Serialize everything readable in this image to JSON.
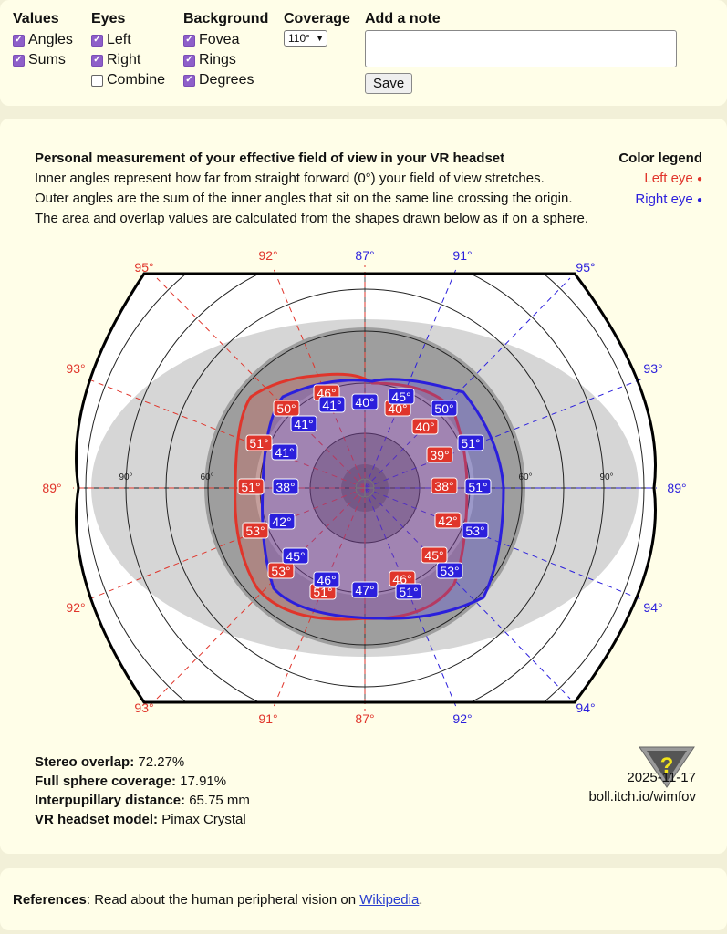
{
  "controls": {
    "values": {
      "title": "Values",
      "options": [
        {
          "label": "Angles",
          "checked": true
        },
        {
          "label": "Sums",
          "checked": true
        }
      ]
    },
    "eyes": {
      "title": "Eyes",
      "options": [
        {
          "label": "Left",
          "checked": true
        },
        {
          "label": "Right",
          "checked": true
        },
        {
          "label": "Combine",
          "checked": false
        }
      ]
    },
    "background": {
      "title": "Background",
      "options": [
        {
          "label": "Fovea",
          "checked": true
        },
        {
          "label": "Rings",
          "checked": true
        },
        {
          "label": "Degrees",
          "checked": true
        }
      ]
    },
    "coverage": {
      "title": "Coverage",
      "selected": "110°"
    },
    "note": {
      "title": "Add a note",
      "value": "",
      "save_label": "Save"
    }
  },
  "header": {
    "title": "Personal measurement of your effective field of view in your VR headset",
    "line1": "Inner angles represent how far from straight forward (0°) your field of view stretches.",
    "line2": "Outer angles are the sum of the inner angles that sit on the same line crossing the origin.",
    "line3": "The area and overlap values are calculated from the shapes drawn below as if on a sphere.",
    "legend_title": "Color legend",
    "legend_left": "Left eye",
    "legend_right": "Right eye"
  },
  "colors": {
    "left": "#e0352b",
    "right": "#2b1fdc",
    "accent": "#8e5fc9"
  },
  "chart_data": {
    "type": "polar-fov",
    "ring_labels": [
      "60°",
      "90°"
    ],
    "sums": {
      "left_color": [
        "95°",
        "92°",
        "87°",
        "93°",
        "89°",
        "92°",
        "93°",
        "91°",
        "87°"
      ],
      "right_color": [
        "91°",
        "95°",
        "93°",
        "89°",
        "94°",
        "92°",
        "94°"
      ]
    },
    "left_eye_angles": [
      "46°",
      "50°",
      "51°",
      "51°",
      "53°",
      "53°",
      "51°",
      "46°",
      "45°",
      "42°",
      "38°",
      "39°",
      "40°",
      "40°"
    ],
    "right_eye_angles": [
      "45°",
      "41°",
      "40°",
      "41°",
      "41°",
      "38°",
      "42°",
      "45°",
      "46°",
      "47°",
      "51°",
      "53°",
      "53°",
      "51°",
      "51°",
      "50°"
    ]
  },
  "stats": {
    "overlap_label": "Stereo overlap:",
    "overlap_value": "72.27%",
    "coverage_label": "Full sphere coverage:",
    "coverage_value": "17.91%",
    "ipd_label": "Interpupillary distance:",
    "ipd_value": "65.75 mm",
    "model_label": "VR headset model:",
    "model_value": "Pimax Crystal"
  },
  "footer_info": {
    "date": "2025-11-17",
    "site": "boll.itch.io/wimfov"
  },
  "references": {
    "label": "References",
    "text": ": Read about the human peripheral vision on ",
    "link": "Wikipedia",
    "end": "."
  }
}
